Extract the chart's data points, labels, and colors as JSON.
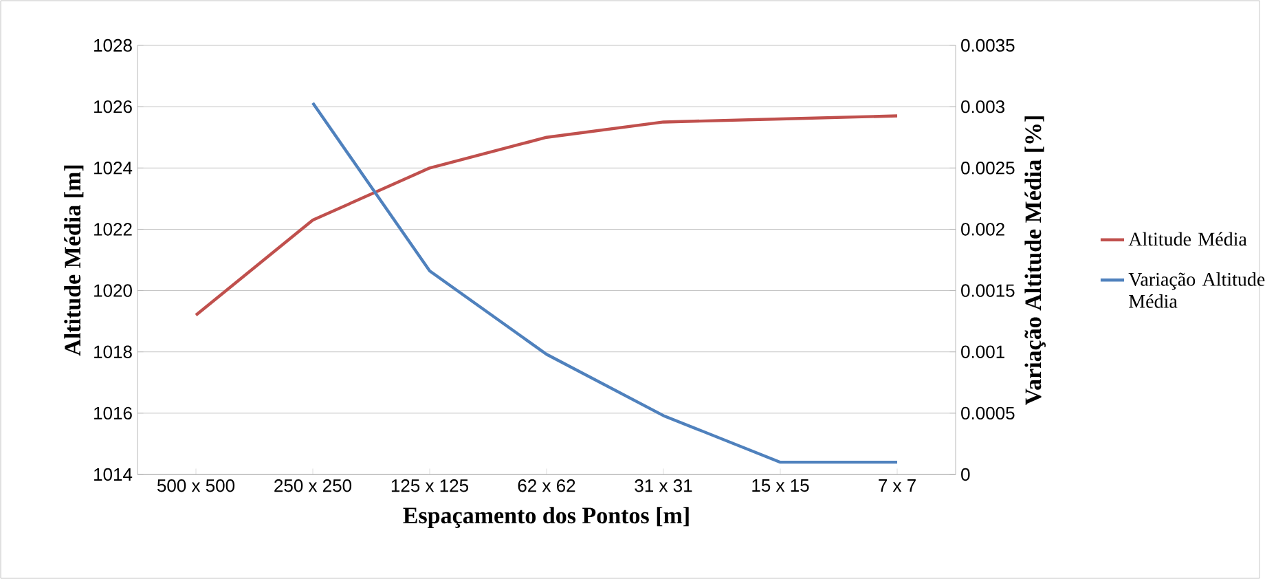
{
  "chart_data": {
    "type": "line",
    "xlabel": "Espaçamento dos Pontos [m]",
    "ylabel": "Altitude Média [m]",
    "y2label": "Variação Altitude Média [%]",
    "categories": [
      "500 x 500",
      "250 x 250",
      "125 x 125",
      "62 x 62",
      "31 x 31",
      "15 x 15",
      "7 x 7"
    ],
    "series": [
      {
        "name": "Altitude Média",
        "color": "#c0504d",
        "values": [
          1019.2,
          1022.3,
          1024.0,
          1025.0,
          1025.5,
          1025.6,
          1025.7
        ]
      },
      {
        "name": "Variação Altitude Média",
        "color": "#4f81bd",
        "axis": "y2",
        "values": [
          null,
          0.00303,
          0.00166,
          0.00098,
          0.00048,
          0.0001,
          0.0001
        ]
      }
    ],
    "ylim": [
      1014,
      1028
    ],
    "yticks": [
      1014,
      1016,
      1018,
      1020,
      1022,
      1024,
      1026,
      1028
    ],
    "y2lim": [
      0,
      0.0035
    ],
    "y2ticks": [
      0,
      0.0005,
      0.001,
      0.0015,
      0.002,
      0.0025,
      0.003,
      0.0035
    ],
    "grid": "y",
    "legend": "right",
    "marker": "none",
    "line_style": "solid"
  }
}
